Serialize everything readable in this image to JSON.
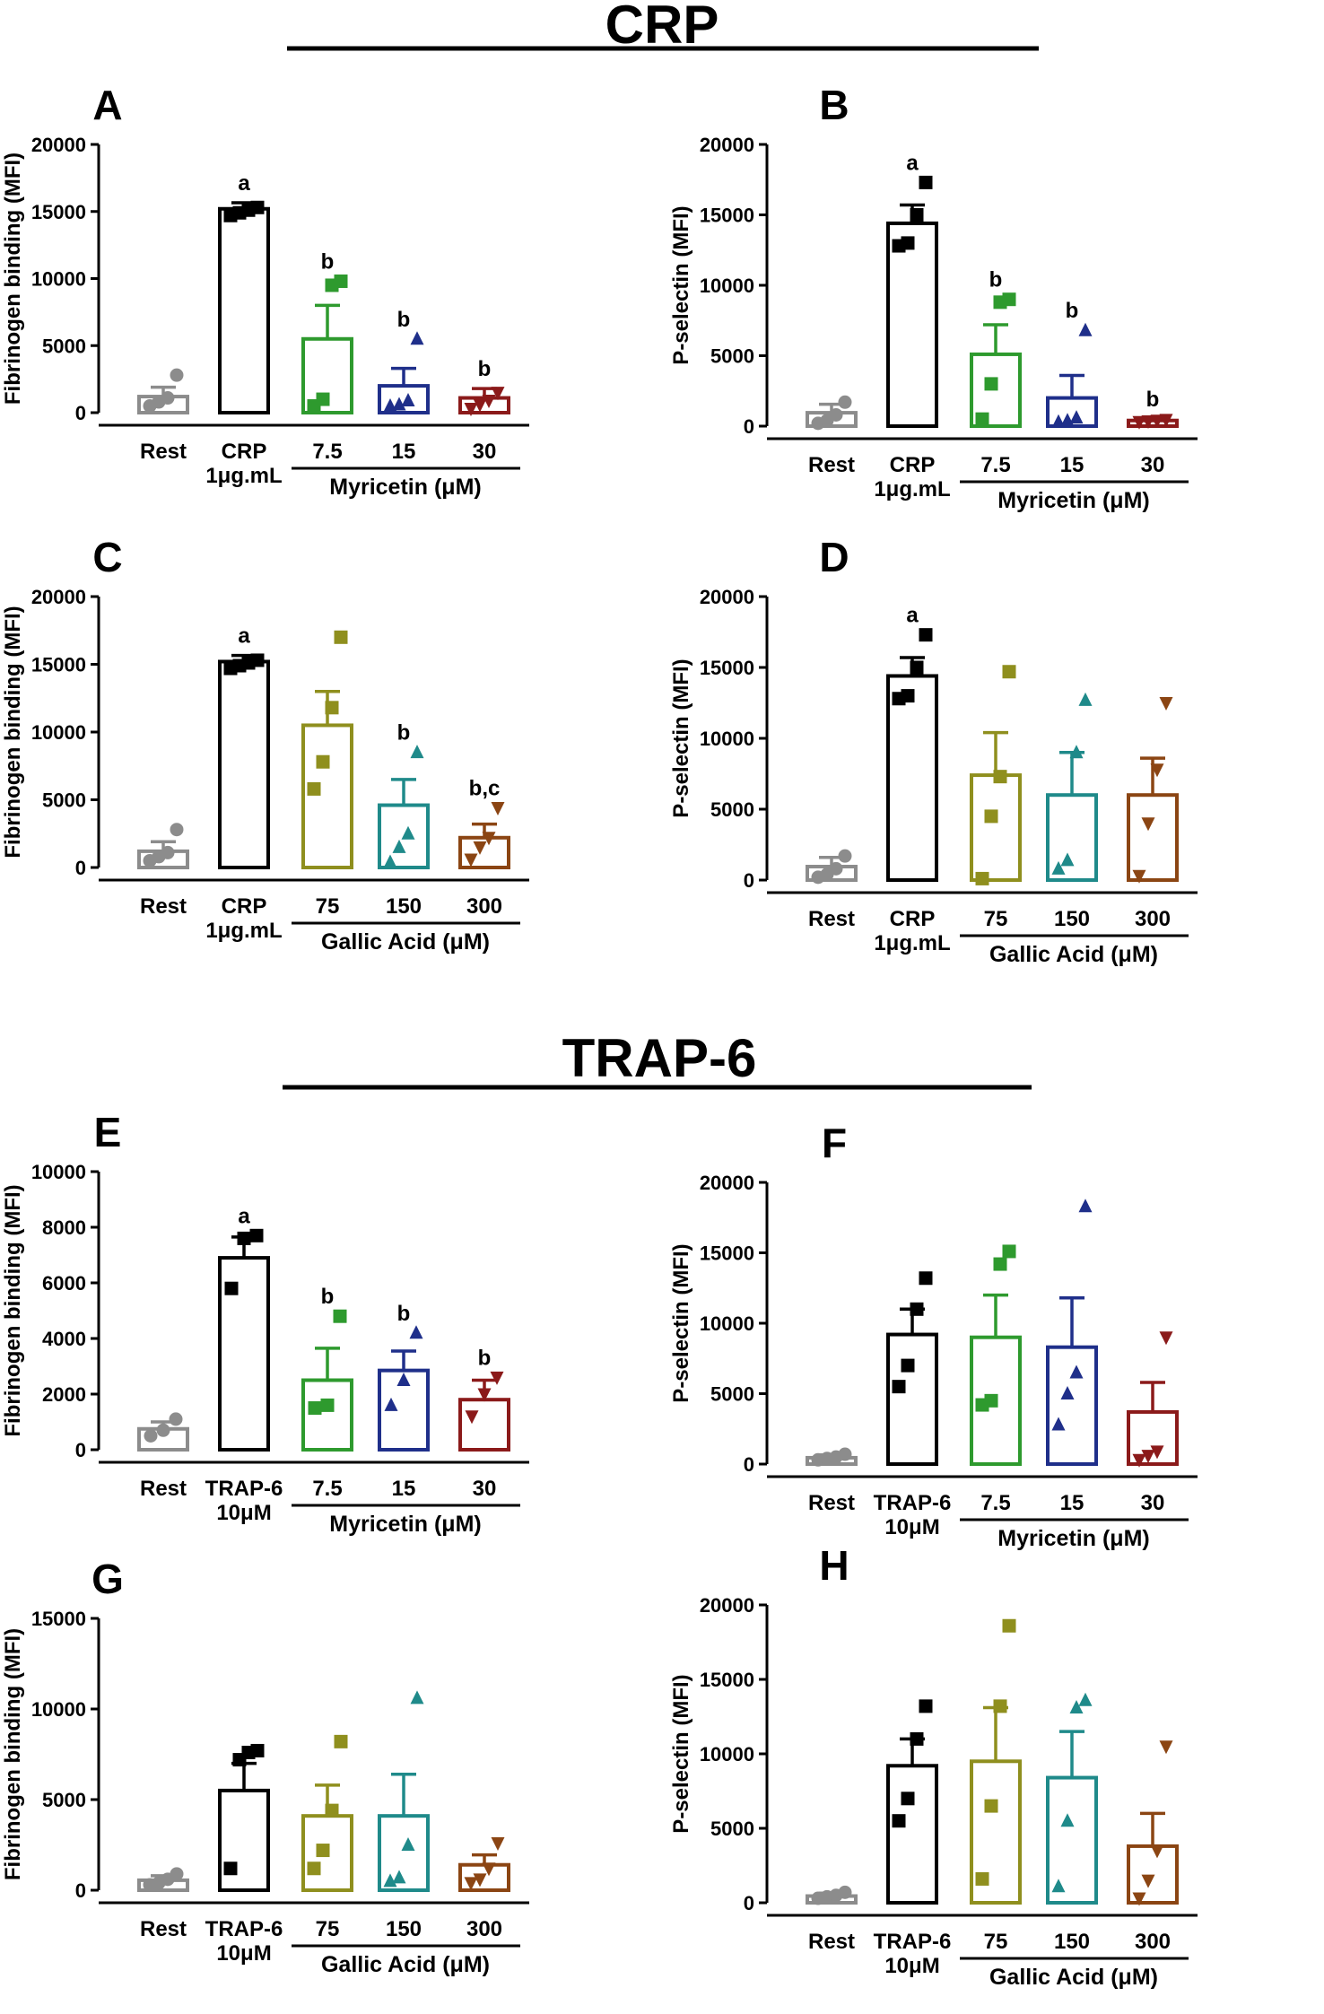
{
  "sections": {
    "crp": {
      "title": "CRP"
    },
    "trap": {
      "title": "TRAP-6"
    }
  },
  "chart_data": [
    {
      "panel": "A",
      "type": "bar",
      "section": "CRP",
      "ylabel": "Fibrinogen binding (MFI)",
      "ylim": [
        0,
        20000
      ],
      "yticks": [
        0,
        5000,
        10000,
        15000,
        20000
      ],
      "categories": [
        [
          "Rest"
        ],
        [
          "CRP",
          "1μg.mL"
        ],
        [
          "7.5"
        ],
        [
          "15"
        ],
        [
          "30"
        ]
      ],
      "group_label": "Myricetin (μM)",
      "values": [
        1200,
        15200,
        5500,
        2000,
        1100
      ],
      "errors": [
        700,
        450,
        2500,
        1300,
        700
      ],
      "points": [
        [
          500,
          800,
          1100,
          2800
        ],
        [
          14700,
          14900,
          15100,
          15300
        ],
        [
          500,
          1000,
          9500,
          9800
        ],
        [
          500,
          600,
          900,
          5500
        ],
        [
          300,
          600,
          900,
          1500
        ]
      ],
      "significance": [
        "",
        "a",
        "b",
        "b",
        "b"
      ],
      "colors": [
        "#8c8c8c",
        "#000000",
        "#2e9a2e",
        "#1f2f8a",
        "#8b1a1a"
      ],
      "markers": [
        "circle",
        "square",
        "square",
        "triangle-up",
        "triangle-down"
      ]
    },
    {
      "panel": "B",
      "type": "bar",
      "section": "CRP",
      "ylabel": "P-selectin (MFI)",
      "ylim": [
        0,
        20000
      ],
      "yticks": [
        0,
        5000,
        10000,
        15000,
        20000
      ],
      "categories": [
        [
          "Rest"
        ],
        [
          "CRP",
          "1μg.mL"
        ],
        [
          "7.5"
        ],
        [
          "15"
        ],
        [
          "30"
        ]
      ],
      "group_label": "Myricetin (μM)",
      "values": [
        950,
        14400,
        5100,
        2000,
        400
      ],
      "errors": [
        600,
        1300,
        2100,
        1600,
        100
      ],
      "points": [
        [
          200,
          400,
          800,
          1700
        ],
        [
          12800,
          13000,
          15000,
          17300
        ],
        [
          500,
          3000,
          8800,
          9000
        ],
        [
          300,
          400,
          600,
          6800
        ],
        [
          300,
          350,
          400,
          450
        ]
      ],
      "significance": [
        "",
        "a",
        "b",
        "b",
        "b"
      ],
      "colors": [
        "#8c8c8c",
        "#000000",
        "#2e9a2e",
        "#1f2f8a",
        "#8b1a1a"
      ],
      "markers": [
        "circle",
        "square",
        "square",
        "triangle-up",
        "triangle-down"
      ]
    },
    {
      "panel": "C",
      "type": "bar",
      "section": "CRP",
      "ylabel": "Fibrinogen binding (MFI)",
      "ylim": [
        0,
        20000
      ],
      "yticks": [
        0,
        5000,
        10000,
        15000,
        20000
      ],
      "categories": [
        [
          "Rest"
        ],
        [
          "CRP",
          "1μg.mL"
        ],
        [
          "75"
        ],
        [
          "150"
        ],
        [
          "300"
        ]
      ],
      "group_label": "Gallic Acid (μM)",
      "values": [
        1200,
        15200,
        10500,
        4600,
        2200
      ],
      "errors": [
        700,
        450,
        2500,
        1900,
        1000
      ],
      "points": [
        [
          500,
          800,
          1100,
          2800
        ],
        [
          14700,
          14900,
          15100,
          15300
        ],
        [
          5800,
          7800,
          11800,
          17000
        ],
        [
          400,
          1500,
          2500,
          8500
        ],
        [
          600,
          1500,
          2200,
          4400
        ]
      ],
      "significance": [
        "",
        "a",
        "",
        "b",
        "b,c"
      ],
      "colors": [
        "#8c8c8c",
        "#000000",
        "#8f8f1e",
        "#1f8a8a",
        "#8b4513"
      ],
      "markers": [
        "circle",
        "square",
        "square",
        "triangle-up",
        "triangle-down"
      ]
    },
    {
      "panel": "D",
      "type": "bar",
      "section": "CRP",
      "ylabel": "P-selectin (MFI)",
      "ylim": [
        0,
        20000
      ],
      "yticks": [
        0,
        5000,
        10000,
        15000,
        20000
      ],
      "categories": [
        [
          "Rest"
        ],
        [
          "CRP",
          "1μg.mL"
        ],
        [
          "75"
        ],
        [
          "150"
        ],
        [
          "300"
        ]
      ],
      "group_label": "Gallic Acid (μM)",
      "values": [
        950,
        14400,
        7400,
        6000,
        6000
      ],
      "errors": [
        650,
        1300,
        3000,
        3000,
        2600
      ],
      "points": [
        [
          200,
          400,
          800,
          1700
        ],
        [
          12800,
          13000,
          15000,
          17300
        ],
        [
          100,
          4500,
          7300,
          14700
        ],
        [
          800,
          1400,
          9000,
          12700
        ],
        [
          300,
          4000,
          7800,
          12500
        ]
      ],
      "significance": [
        "",
        "a",
        "",
        "",
        ""
      ],
      "colors": [
        "#8c8c8c",
        "#000000",
        "#8f8f1e",
        "#1f8a8a",
        "#8b4513"
      ],
      "markers": [
        "circle",
        "square",
        "square",
        "triangle-up",
        "triangle-down"
      ]
    },
    {
      "panel": "E",
      "type": "bar",
      "section": "TRAP-6",
      "ylabel": "Fibrinogen binding (MFI)",
      "ylim": [
        0,
        10000
      ],
      "yticks": [
        0,
        2000,
        4000,
        6000,
        8000,
        10000
      ],
      "categories": [
        [
          "Rest"
        ],
        [
          "TRAP-6",
          "10μM"
        ],
        [
          "7.5"
        ],
        [
          "15"
        ],
        [
          "30"
        ]
      ],
      "group_label": "Myricetin (μM)",
      "values": [
        750,
        6900,
        2500,
        2850,
        1800
      ],
      "errors": [
        250,
        750,
        1150,
        700,
        700
      ],
      "points": [
        [
          500,
          700,
          1100
        ],
        [
          5800,
          7600,
          7700
        ],
        [
          1500,
          1600,
          4800
        ],
        [
          1600,
          2500,
          4200
        ],
        [
          1200,
          2000,
          2600
        ]
      ],
      "significance": [
        "",
        "a",
        "b",
        "b",
        "b"
      ],
      "colors": [
        "#8c8c8c",
        "#000000",
        "#2e9a2e",
        "#1f2f8a",
        "#8b1a1a"
      ],
      "markers": [
        "circle",
        "square",
        "square",
        "triangle-up",
        "triangle-down"
      ]
    },
    {
      "panel": "F",
      "type": "bar",
      "section": "TRAP-6",
      "ylabel": "P-selectin (MFI)",
      "ylim": [
        0,
        20000
      ],
      "yticks": [
        0,
        5000,
        10000,
        15000,
        20000
      ],
      "categories": [
        [
          "Rest"
        ],
        [
          "TRAP-6",
          "10μM"
        ],
        [
          "7.5"
        ],
        [
          "15"
        ],
        [
          "30"
        ]
      ],
      "group_label": "Myricetin (μM)",
      "values": [
        450,
        9200,
        9000,
        8300,
        3700
      ],
      "errors": [
        200,
        1800,
        3000,
        3500,
        2100
      ],
      "points": [
        [
          300,
          400,
          500,
          700
        ],
        [
          5500,
          7000,
          11000,
          13200
        ],
        [
          4200,
          4500,
          14200,
          15100
        ],
        [
          2800,
          5000,
          6500,
          18300
        ],
        [
          300,
          600,
          900,
          9000
        ]
      ],
      "significance": [
        "",
        "",
        "",
        "",
        ""
      ],
      "colors": [
        "#8c8c8c",
        "#000000",
        "#2e9a2e",
        "#1f2f8a",
        "#8b1a1a"
      ],
      "markers": [
        "circle",
        "square",
        "square",
        "triangle-up",
        "triangle-down"
      ]
    },
    {
      "panel": "G",
      "type": "bar",
      "section": "TRAP-6",
      "ylabel": "Fibrinogen binding (MFI)",
      "ylim": [
        0,
        15000
      ],
      "yticks": [
        0,
        5000,
        10000,
        15000
      ],
      "categories": [
        [
          "Rest"
        ],
        [
          "TRAP-6",
          "10μM"
        ],
        [
          "75"
        ],
        [
          "150"
        ],
        [
          "300"
        ]
      ],
      "group_label": "Gallic Acid (μM)",
      "values": [
        550,
        5500,
        4100,
        4100,
        1400
      ],
      "errors": [
        250,
        1500,
        1700,
        2300,
        550
      ],
      "points": [
        [
          300,
          400,
          600,
          900
        ],
        [
          1200,
          7200,
          7600,
          7700
        ],
        [
          1200,
          2200,
          4400,
          8200
        ],
        [
          500,
          700,
          2500,
          10600
        ],
        [
          400,
          600,
          1200,
          2600
        ]
      ],
      "significance": [
        "",
        "",
        "",
        "",
        ""
      ],
      "colors": [
        "#8c8c8c",
        "#000000",
        "#8f8f1e",
        "#1f8a8a",
        "#8b4513"
      ],
      "markers": [
        "circle",
        "square",
        "square",
        "triangle-up",
        "triangle-down"
      ]
    },
    {
      "panel": "H",
      "type": "bar",
      "section": "TRAP-6",
      "ylabel": "P-selectin (MFI)",
      "ylim": [
        0,
        20000
      ],
      "yticks": [
        0,
        5000,
        10000,
        15000,
        20000
      ],
      "categories": [
        [
          "Rest"
        ],
        [
          "TRAP-6",
          "10μM"
        ],
        [
          "75"
        ],
        [
          "150"
        ],
        [
          "300"
        ]
      ],
      "group_label": "Gallic Acid (μM)",
      "values": [
        450,
        9200,
        9500,
        8400,
        3800
      ],
      "errors": [
        200,
        1800,
        3600,
        3100,
        2200
      ],
      "points": [
        [
          300,
          400,
          500,
          700
        ],
        [
          5500,
          7000,
          11000,
          13200
        ],
        [
          1600,
          6500,
          13200,
          18600
        ],
        [
          1100,
          5500,
          13100,
          13600
        ],
        [
          300,
          1500,
          3500,
          10500
        ]
      ],
      "significance": [
        "",
        "",
        "",
        "",
        ""
      ],
      "colors": [
        "#8c8c8c",
        "#000000",
        "#8f8f1e",
        "#1f8a8a",
        "#8b4513"
      ],
      "markers": [
        "circle",
        "square",
        "square",
        "triangle-up",
        "triangle-down"
      ]
    }
  ]
}
